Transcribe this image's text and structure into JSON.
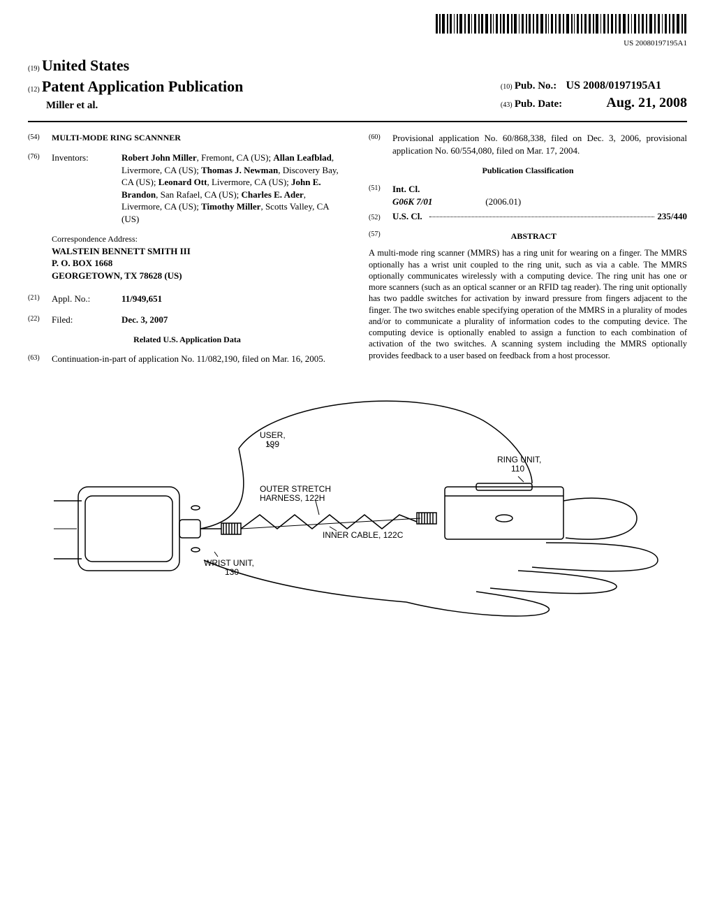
{
  "barcode_number": "US 20080197195A1",
  "header": {
    "country_code": "(19)",
    "country": "United States",
    "pub_type_code": "(12)",
    "pub_type": "Patent Application Publication",
    "authors": "Miller et al.",
    "pub_no_code": "(10)",
    "pub_no_label": "Pub. No.:",
    "pub_no": "US 2008/0197195A1",
    "pub_date_code": "(43)",
    "pub_date_label": "Pub. Date:",
    "pub_date": "Aug. 21, 2008"
  },
  "left": {
    "title_code": "(54)",
    "title": "MULTI-MODE RING SCANNNER",
    "inventors_code": "(76)",
    "inventors_label": "Inventors:",
    "inventors_html": "Robert John Miller, Fremont, CA (US); Allan Leafblad, Livermore, CA (US); Thomas J. Newman, Discovery Bay, CA (US); Leonard Ott, Livermore, CA (US); John E. Brandon, San Rafael, CA (US); Charles E. Ader, Livermore, CA (US); Timothy Miller, Scotts Valley, CA (US)",
    "inv_names": [
      "Robert John Miller",
      "Allan Leafblad",
      "Thomas J. Newman",
      "Leonard Ott",
      "John E. Brandon",
      "Charles E. Ader",
      "Timothy Miller"
    ],
    "inv_locs": [
      "Fremont, CA (US)",
      "Livermore, CA (US)",
      "Discovery Bay, CA (US)",
      "Livermore, CA (US)",
      "San Rafael, CA (US)",
      "Livermore, CA (US)",
      "Scotts Valley, CA (US)"
    ],
    "corr_label": "Correspondence Address:",
    "corr_line1": "WALSTEIN BENNETT SMITH III",
    "corr_line2": "P. O. BOX 1668",
    "corr_line3": "GEORGETOWN, TX 78628 (US)",
    "appl_code": "(21)",
    "appl_label": "Appl. No.:",
    "appl_no": "11/949,651",
    "filed_code": "(22)",
    "filed_label": "Filed:",
    "filed": "Dec. 3, 2007",
    "related_heading": "Related U.S. Application Data",
    "cip_code": "(63)",
    "cip_text": "Continuation-in-part of application No. 11/082,190, filed on Mar. 16, 2005."
  },
  "right": {
    "prov_code": "(60)",
    "prov_text": "Provisional application No. 60/868,338, filed on Dec. 3, 2006, provisional application No. 60/554,080, filed on Mar. 17, 2004.",
    "classification_heading": "Publication Classification",
    "intcl_code": "(51)",
    "intcl_label": "Int. Cl.",
    "intcl_code_val": "G06K 7/01",
    "intcl_year": "(2006.01)",
    "uscl_code": "(52)",
    "uscl_label": "U.S. Cl.",
    "uscl_val": "235/440",
    "abstract_code": "(57)",
    "abstract_heading": "ABSTRACT",
    "abstract": "A multi-mode ring scanner (MMRS) has a ring unit for wearing on a finger. The MMRS optionally has a wrist unit coupled to the ring unit, such as via a cable. The MMRS optionally communicates wirelessly with a computing device. The ring unit has one or more scanners (such as an optical scanner or an RFID tag reader). The ring unit optionally has two paddle switches for activation by inward pressure from fingers adjacent to the finger. The two switches enable specifying operation of the MMRS in a plurality of modes and/or to communicate a plurality of information codes to the computing device. The computing device is optionally enabled to assign a function to each combination of activation of the two switches. A scanning system including the MMRS optionally provides feedback to a user based on feedback from a host processor."
  },
  "figure": {
    "user_label": "USER,",
    "user_num": "199",
    "ring_label": "RING UNIT,",
    "ring_num": "110",
    "harness_label": "OUTER STRETCH",
    "harness_label2": "HARNESS, 122H",
    "cable_label": "INNER CABLE, 122C",
    "wrist_label": "WRIST UNIT,",
    "wrist_num": "130"
  }
}
